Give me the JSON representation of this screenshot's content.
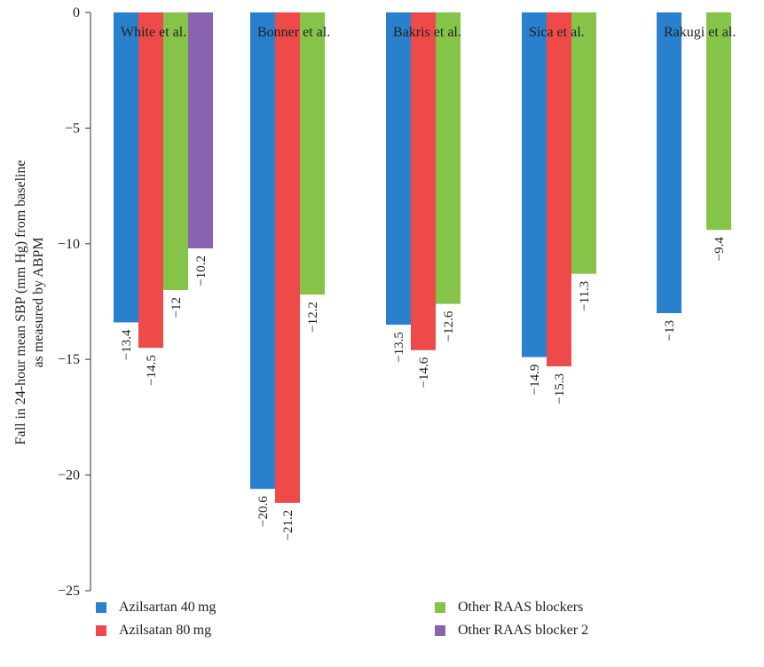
{
  "chart_data": {
    "type": "bar",
    "title": "",
    "xlabel": "",
    "ylabel_line1": "Fall in 24-hour mean SBP (mm Hg) from baseline",
    "ylabel_line2": "as measured by ABPM",
    "ylim": [
      -25,
      0
    ],
    "yticks": [
      "0",
      "−5",
      "−10",
      "−15",
      "−20",
      "−25"
    ],
    "ytick_values": [
      0,
      -5,
      -10,
      -15,
      -20,
      -25
    ],
    "categories": [
      "White et al.",
      "Bonner et al.",
      "Bakris et al.",
      "Sica et al.",
      "Rakugi et al."
    ],
    "series": [
      {
        "name": "Azilsartan 40 mg",
        "color": "#2980cc",
        "values": [
          -13.4,
          -20.6,
          -13.5,
          -14.9,
          -13
        ],
        "labels": [
          "−13.4",
          "−20.6",
          "−13.5",
          "−14.9",
          "−13"
        ]
      },
      {
        "name": "Azilsatan 80 mg",
        "color": "#ee4a4a",
        "values": [
          -14.5,
          -21.2,
          -14.6,
          -15.3,
          null
        ],
        "labels": [
          "−14.5",
          "−21.2",
          "−14.6",
          "−15.3",
          ""
        ]
      },
      {
        "name": "Other RAAS blockers",
        "color": "#85c448",
        "values": [
          -12,
          -12.2,
          -12.6,
          -11.3,
          -9.4
        ],
        "labels": [
          "−12",
          "−12.2",
          "−12.6",
          "−11.3",
          "−9.4"
        ]
      },
      {
        "name": "Other RAAS blocker 2",
        "color": "#8a63b0",
        "values": [
          -10.2,
          null,
          null,
          null,
          null
        ],
        "labels": [
          "−10.2",
          "",
          "",
          "",
          ""
        ]
      }
    ],
    "legend_position": "bottom",
    "grid": false
  }
}
